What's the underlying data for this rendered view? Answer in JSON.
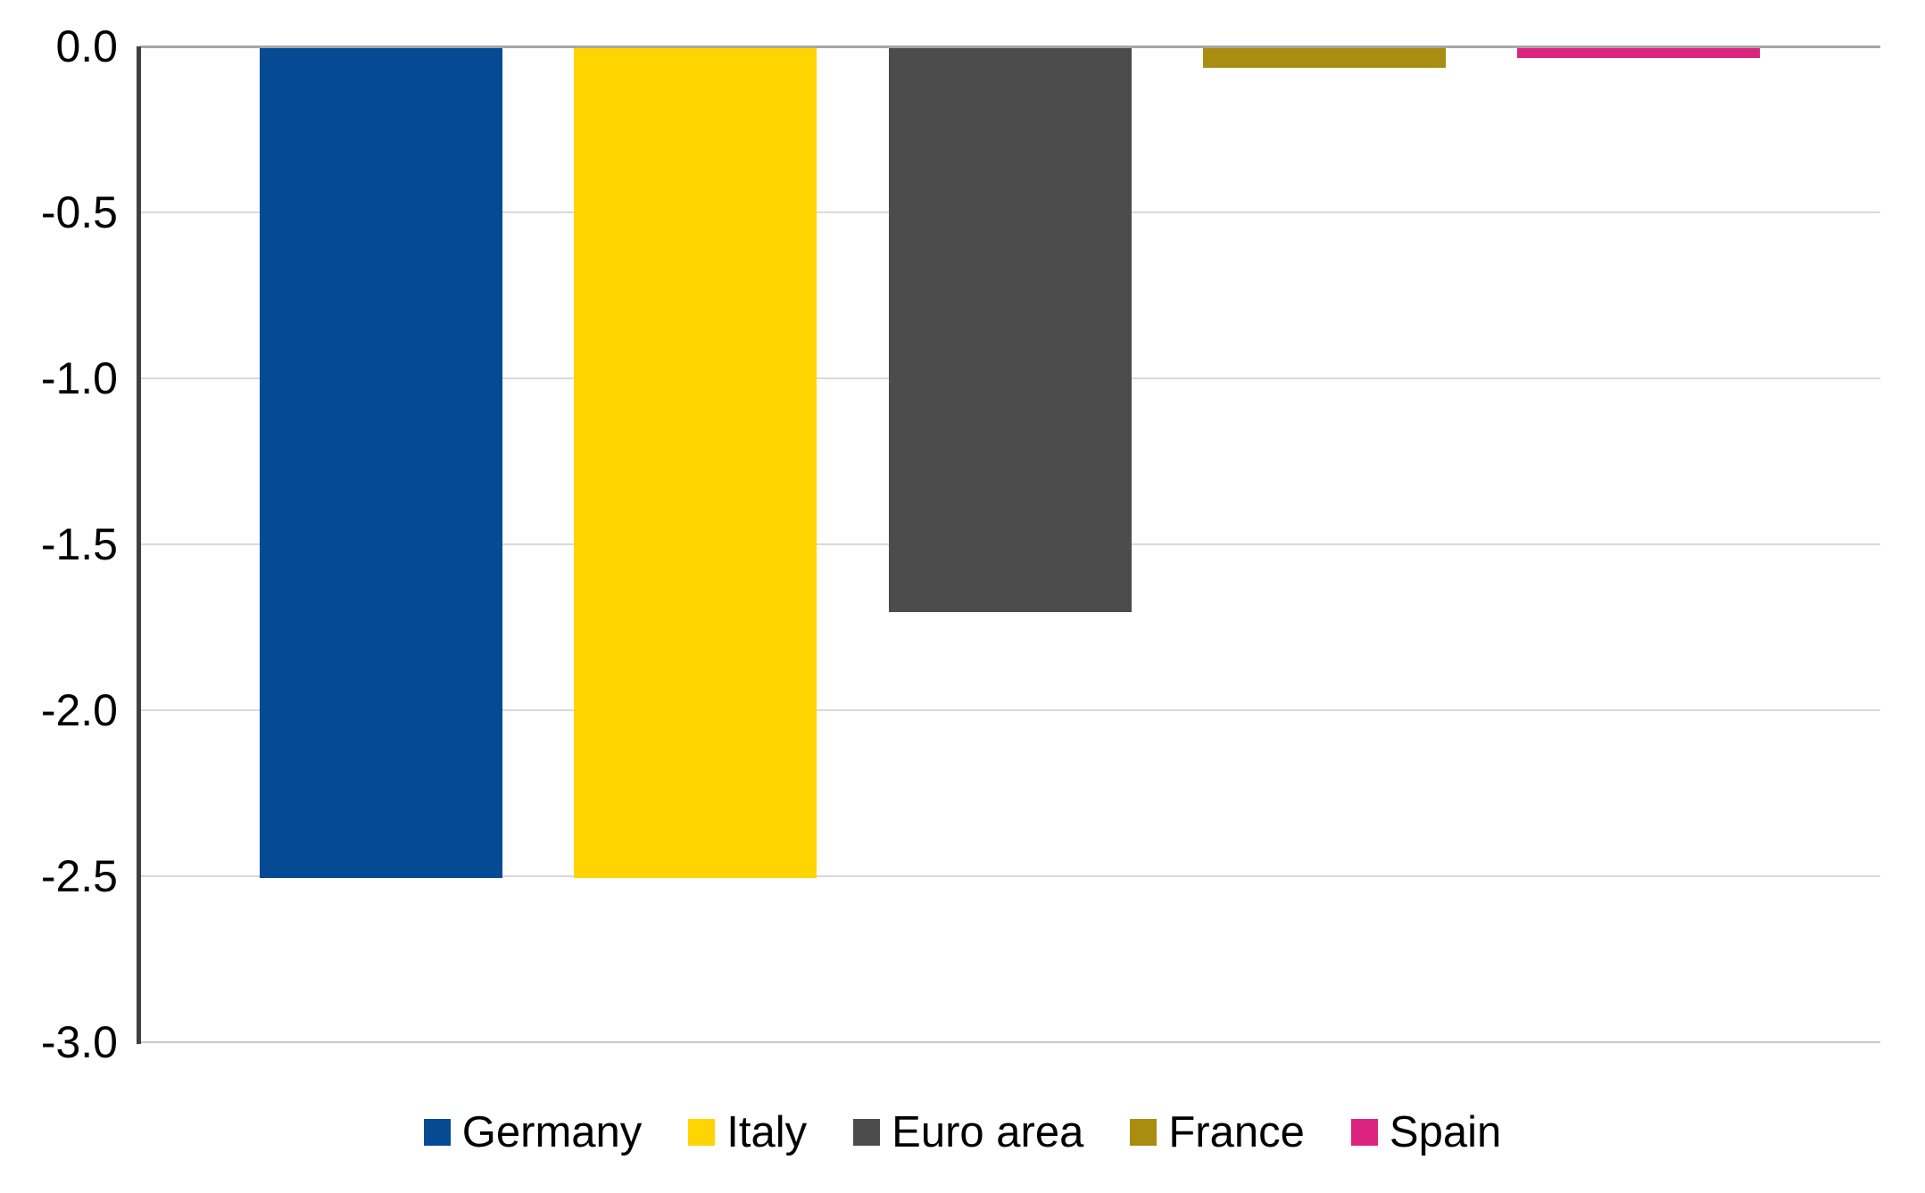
{
  "chart_data": {
    "type": "bar",
    "title": "",
    "xlabel": "",
    "ylabel": "",
    "categories": [
      "Germany",
      "Italy",
      "Euro area",
      "France",
      "Spain"
    ],
    "values": [
      -2.5,
      -2.5,
      -1.7,
      -0.06,
      -0.03
    ],
    "bar_colors": [
      "#064A94",
      "#FFD400",
      "#4C4C4C",
      "#A98C10",
      "#DD2380"
    ],
    "ylim": [
      -3.0,
      0.0
    ],
    "yticks": [
      {
        "value": 0.0,
        "label": "0.0"
      },
      {
        "value": -0.5,
        "label": "-0.5"
      },
      {
        "value": -1.0,
        "label": "-1.0"
      },
      {
        "value": -1.5,
        "label": "-1.5"
      },
      {
        "value": -2.0,
        "label": "-2.0"
      },
      {
        "value": -2.5,
        "label": "-2.5"
      },
      {
        "value": -3.0,
        "label": "-3.0"
      }
    ],
    "grid": true,
    "legend_position": "bottom-center"
  },
  "colors": {
    "background": "#FFFFFF",
    "axis_line": "#404040",
    "gridline": "#D9D9D9",
    "zero_line": "#A6A6A6",
    "tick_label": "#000000",
    "legend_text": "#000000"
  }
}
